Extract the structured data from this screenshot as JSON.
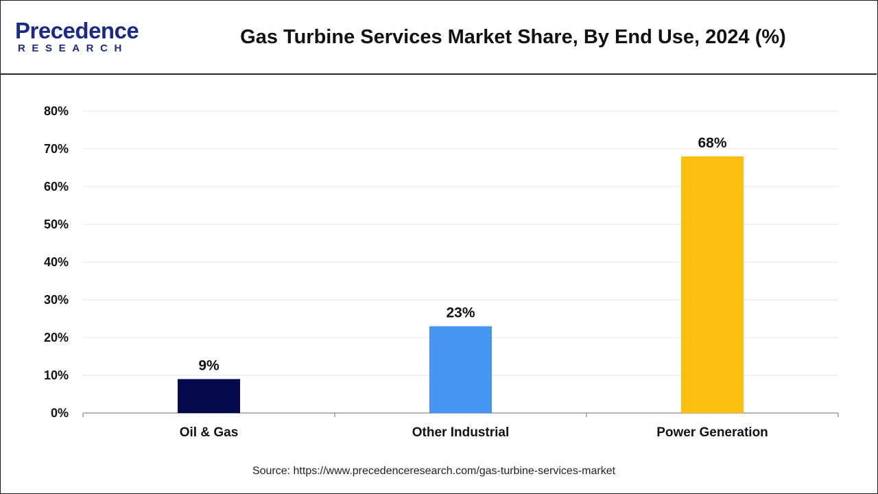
{
  "brand": {
    "name": "Precedence",
    "sub": "RESEARCH",
    "color": "#1b2a8a"
  },
  "header": {
    "title": "Gas Turbine Services Market Share, By End Use, 2024 (%)"
  },
  "chart_data": {
    "type": "bar",
    "title": "Gas Turbine Services Market Share, By End Use, 2024 (%)",
    "categories": [
      "Oil & Gas",
      "Other Industrial",
      "Power Generation"
    ],
    "values": [
      9,
      23,
      68
    ],
    "data_labels": [
      "9%",
      "23%",
      "68%"
    ],
    "colors": [
      "#050a4e",
      "#4695f2",
      "#fdbf0f"
    ],
    "xlabel": "",
    "ylabel": "",
    "ylim": [
      0,
      80
    ],
    "yticks": [
      0,
      10,
      20,
      30,
      40,
      50,
      60,
      70,
      80
    ],
    "ytick_labels": [
      "0%",
      "10%",
      "20%",
      "30%",
      "40%",
      "50%",
      "60%",
      "70%",
      "80%"
    ],
    "grid": true,
    "legend": "none"
  },
  "footer": {
    "source": "Source: https://www.precedenceresearch.com/gas-turbine-services-market"
  }
}
